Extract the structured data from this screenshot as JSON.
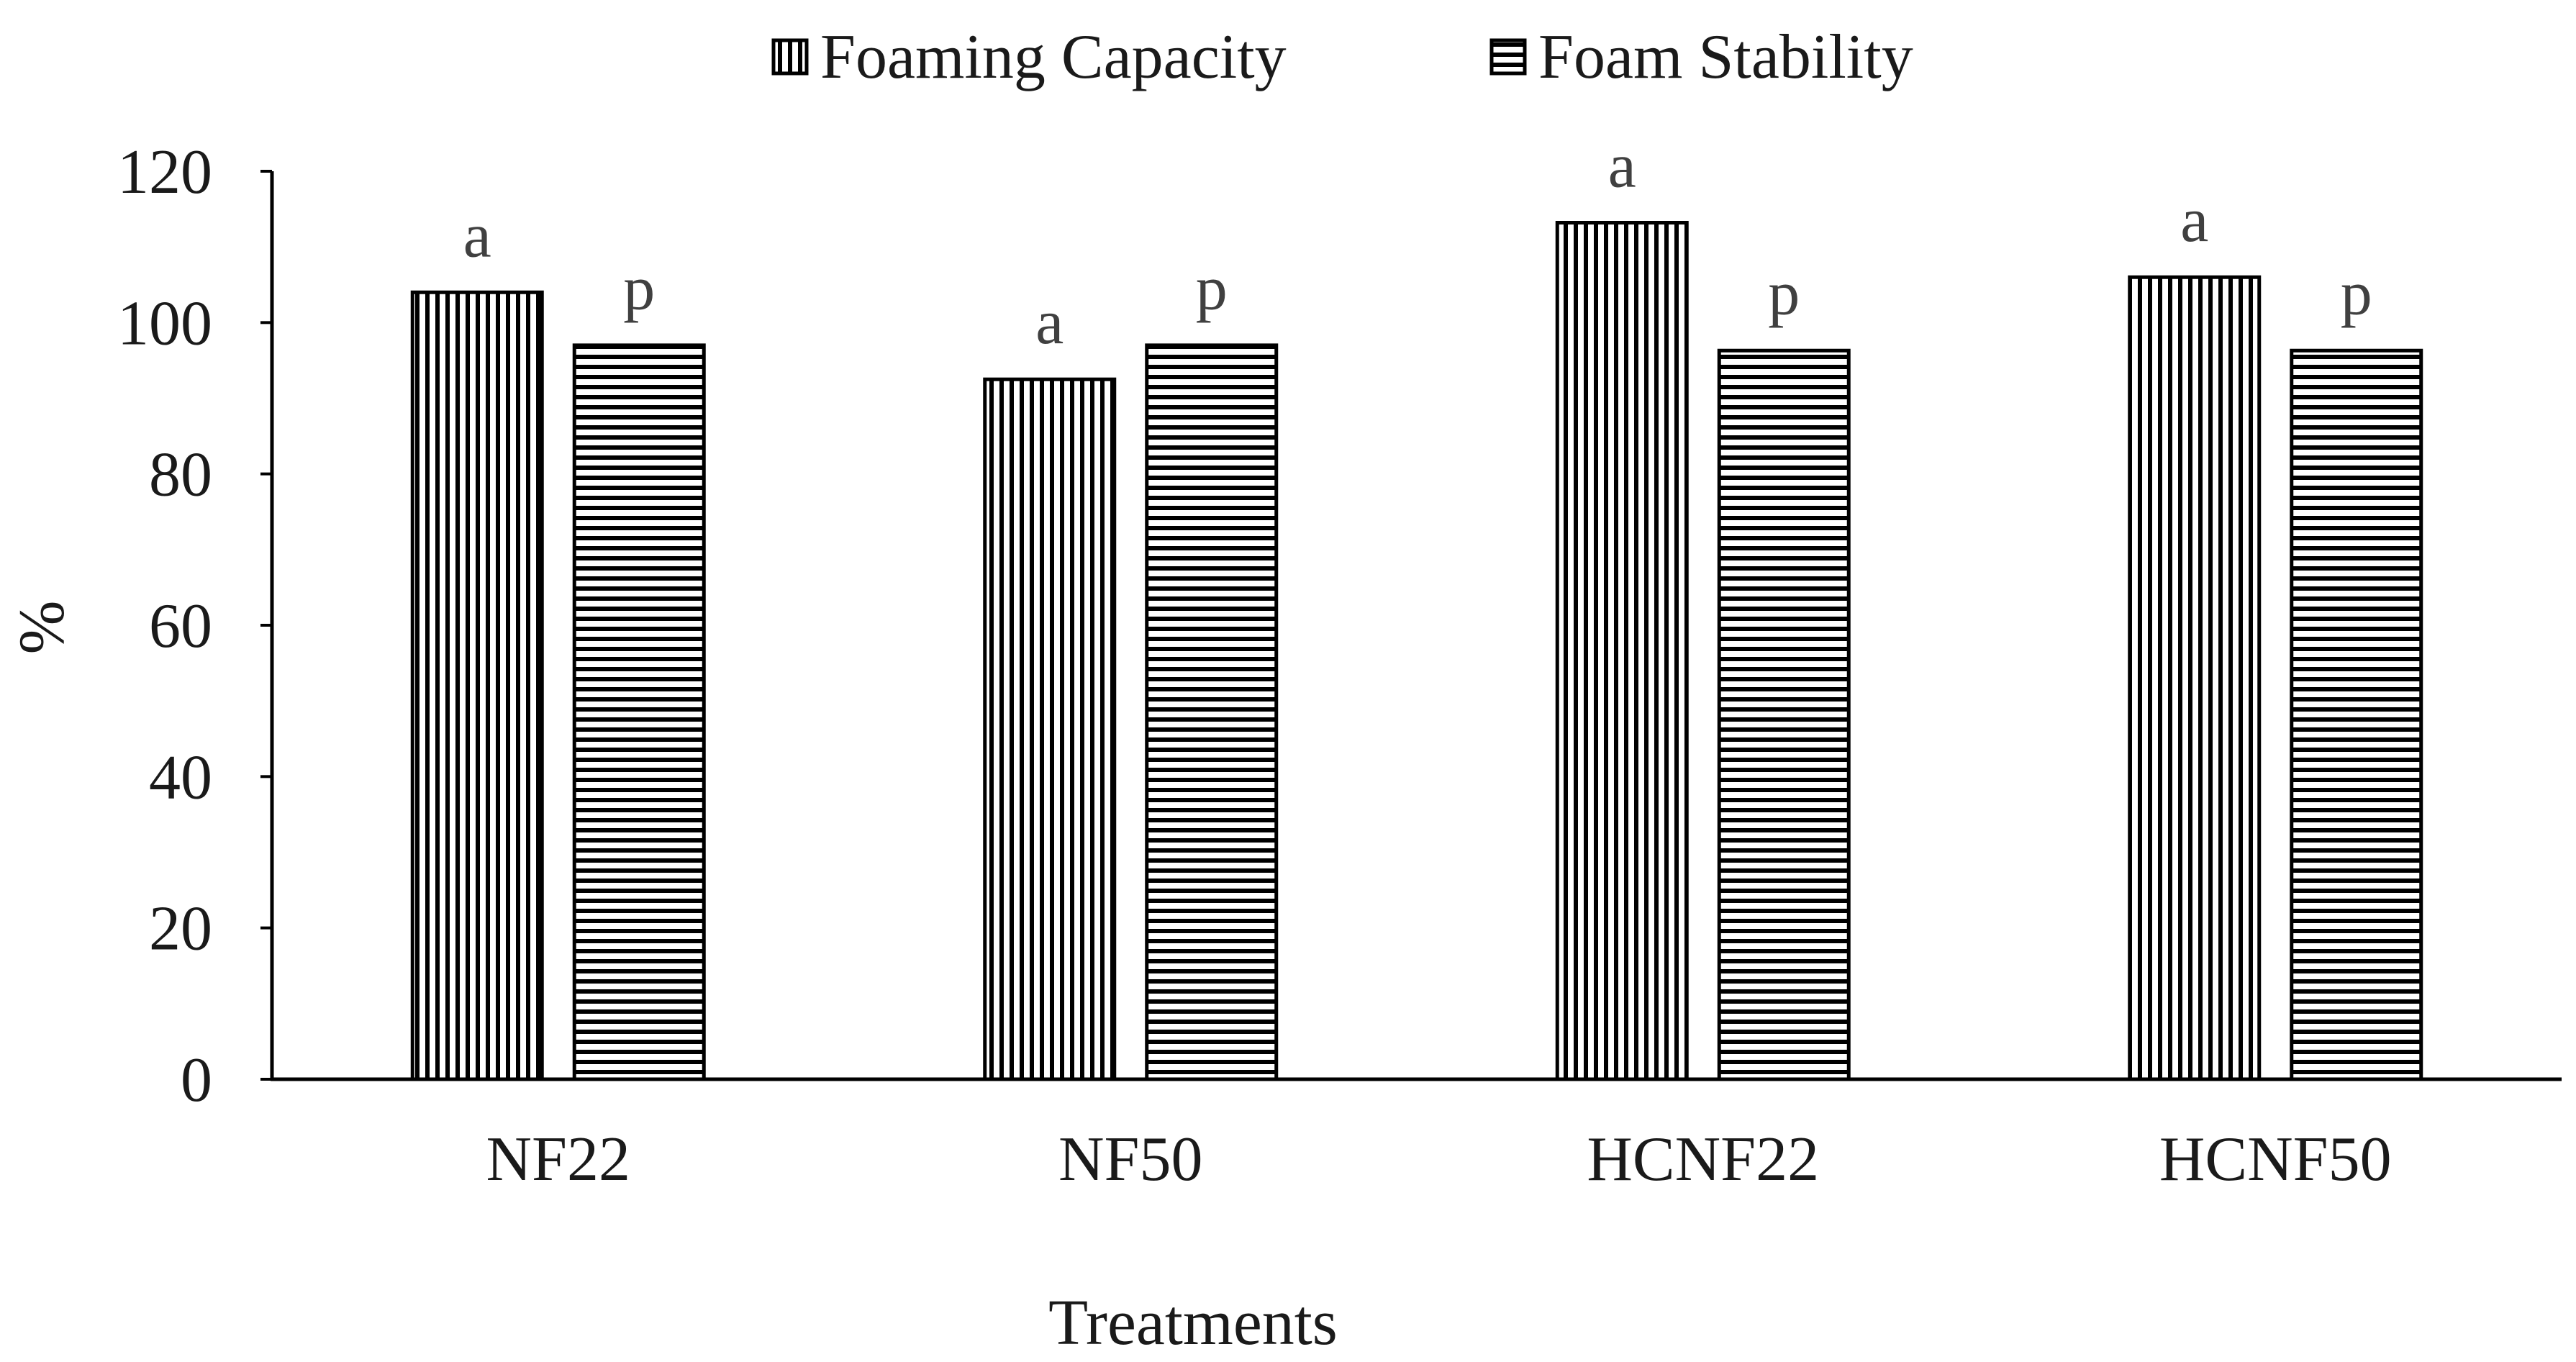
{
  "chart_data": {
    "type": "bar",
    "title": "",
    "xlabel": "Treatments",
    "ylabel": "%",
    "ylim": [
      0,
      120
    ],
    "yticks": [
      0,
      20,
      40,
      60,
      80,
      100,
      120
    ],
    "grid": false,
    "legend_position": "top-center",
    "categories": [
      "NF22",
      "NF50",
      "HCNF22",
      "HCNF50"
    ],
    "series": [
      {
        "name": "Foaming Capacity",
        "pattern": "vertical-stripes",
        "values": [
          104,
          92.5,
          113.2,
          106
        ],
        "labels": [
          "a",
          "a",
          "a",
          "a"
        ]
      },
      {
        "name": "Foam Stability",
        "pattern": "horizontal-stripes",
        "values": [
          97,
          97,
          96.3,
          96.3
        ],
        "labels": [
          "p",
          "p",
          "p",
          "p"
        ]
      }
    ],
    "colors": {
      "stroke": "#000000",
      "fill": "#ffffff",
      "text": "#1a1a1a",
      "sig_text": "#404040"
    }
  }
}
